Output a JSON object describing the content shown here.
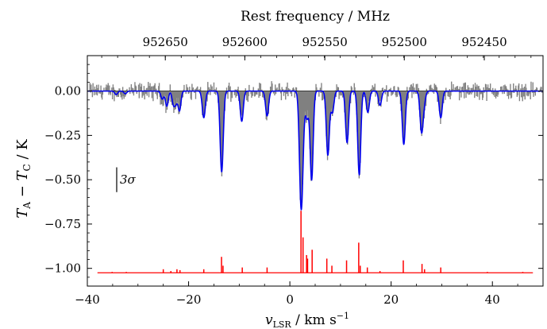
{
  "chart_data": {
    "type": "line",
    "top_axis_title": "Rest frequency / MHz",
    "top_ticks": [
      "952650",
      "952600",
      "952550",
      "952500",
      "952450"
    ],
    "top_tick_positions_kms": [
      -24.6,
      -8.9,
      6.9,
      22.6,
      38.4
    ],
    "xlabel_main": "v",
    "xlabel_sub": "LSR",
    "xlabel_units": " / km s",
    "xlabel_sup": "−1",
    "ylabel_parts": {
      "a": "T",
      "a_sub": "A",
      "minus": " − ",
      "b": "T",
      "b_sub": "C",
      "units": " / K"
    },
    "xlim": [
      -40,
      50
    ],
    "ylim": [
      -1.1,
      0.2
    ],
    "x_ticks": [
      -40,
      -20,
      0,
      20,
      40
    ],
    "x_tick_labels": [
      "−40",
      "−20",
      "0",
      "20",
      "40"
    ],
    "y_ticks": [
      0.0,
      -0.25,
      -0.5,
      -0.75,
      -1.0
    ],
    "y_tick_labels": [
      "0.00",
      "−0.25",
      "−0.50",
      "−0.75",
      "−1.00"
    ],
    "annotation": "3σ",
    "annotation_sigma_bar": {
      "x": -34.2,
      "y_top": -0.43,
      "y_bottom": -0.57
    },
    "colors": {
      "observed": "#808080",
      "model": "#0000ee",
      "lines": "#ff0000"
    },
    "model_components": [
      {
        "v": -34.3,
        "depth": 0.02,
        "width": 0.28
      },
      {
        "v": -32.5,
        "depth": 0.015,
        "width": 0.28
      },
      {
        "v": -25.2,
        "depth": 0.045,
        "width": 0.28
      },
      {
        "v": -24.3,
        "depth": 0.085,
        "width": 0.28
      },
      {
        "v": -23.0,
        "depth": 0.07,
        "width": 0.28
      },
      {
        "v": -22.5,
        "depth": 0.06,
        "width": 0.28
      },
      {
        "v": -21.8,
        "depth": 0.11,
        "width": 0.28
      },
      {
        "v": -17.0,
        "depth": 0.15,
        "width": 0.3
      },
      {
        "v": -13.5,
        "depth": 0.38,
        "width": 0.3
      },
      {
        "v": -13.3,
        "depth": 0.09,
        "width": 0.3
      },
      {
        "v": -9.5,
        "depth": 0.17,
        "width": 0.3
      },
      {
        "v": -4.5,
        "depth": 0.14,
        "width": 0.3
      },
      {
        "v": 2.2,
        "depth": 0.6,
        "width": 0.32
      },
      {
        "v": 2.6,
        "depth": 0.15,
        "width": 0.3
      },
      {
        "v": 3.4,
        "depth": 0.15,
        "width": 0.3
      },
      {
        "v": 4.3,
        "depth": 0.5,
        "width": 0.3
      },
      {
        "v": 7.5,
        "depth": 0.36,
        "width": 0.3
      },
      {
        "v": 8.4,
        "depth": 0.12,
        "width": 0.3
      },
      {
        "v": 11.3,
        "depth": 0.29,
        "width": 0.3
      },
      {
        "v": 13.7,
        "depth": 0.47,
        "width": 0.3
      },
      {
        "v": 15.4,
        "depth": 0.12,
        "width": 0.3
      },
      {
        "v": 17.8,
        "depth": 0.08,
        "width": 0.3
      },
      {
        "v": 22.5,
        "depth": 0.3,
        "width": 0.3
      },
      {
        "v": 26.0,
        "depth": 0.22,
        "width": 0.3
      },
      {
        "v": 29.8,
        "depth": 0.15,
        "width": 0.3
      },
      {
        "v": 26.5,
        "depth": 0.06,
        "width": 0.3
      }
    ],
    "stick_lines": [
      {
        "v": -35.1,
        "h": 0.005
      },
      {
        "v": -32.3,
        "h": 0.005
      },
      {
        "v": -25.0,
        "h": 0.02
      },
      {
        "v": -23.5,
        "h": 0.01
      },
      {
        "v": -22.3,
        "h": 0.02
      },
      {
        "v": -21.7,
        "h": 0.015
      },
      {
        "v": -17.0,
        "h": 0.02
      },
      {
        "v": -13.5,
        "h": 0.09
      },
      {
        "v": -13.2,
        "h": 0.04
      },
      {
        "v": -9.4,
        "h": 0.03
      },
      {
        "v": -4.5,
        "h": 0.03
      },
      {
        "v": 2.2,
        "h": 0.35
      },
      {
        "v": 2.6,
        "h": 0.2
      },
      {
        "v": 3.3,
        "h": 0.1
      },
      {
        "v": 3.5,
        "h": 0.08
      },
      {
        "v": 4.4,
        "h": 0.13
      },
      {
        "v": 7.3,
        "h": 0.08
      },
      {
        "v": 8.3,
        "h": 0.04
      },
      {
        "v": 11.2,
        "h": 0.07
      },
      {
        "v": 13.6,
        "h": 0.17
      },
      {
        "v": 13.9,
        "h": 0.04
      },
      {
        "v": 15.3,
        "h": 0.03
      },
      {
        "v": 17.8,
        "h": 0.01
      },
      {
        "v": 22.4,
        "h": 0.07
      },
      {
        "v": 26.1,
        "h": 0.05
      },
      {
        "v": 26.6,
        "h": 0.02
      },
      {
        "v": 29.8,
        "h": 0.03
      },
      {
        "v": 39.0,
        "h": 0.005
      },
      {
        "v": 46.0,
        "h": 0.005
      }
    ],
    "stick_baseline": -1.025
  }
}
